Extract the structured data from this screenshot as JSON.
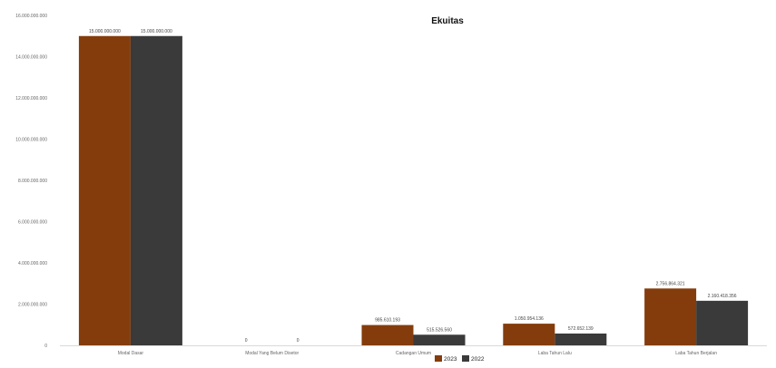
{
  "chart_data": {
    "type": "bar",
    "title": "Ekuitas",
    "xlabel": "",
    "ylabel": "",
    "categories": [
      "Modal Dasar",
      "Modal Yang Belum Disetor",
      "Cadangan Umum",
      "Laba Tahun Lalu",
      "Laba Tahun Berjalan"
    ],
    "series": [
      {
        "name": "2023",
        "color": "#843c0c",
        "values": [
          15000000000,
          0,
          985610193,
          1050954136,
          2756864321
        ],
        "labels": [
          "15.000.000.000",
          "0",
          "985.610.193",
          "1.050.954.136",
          "2.756.864.321"
        ]
      },
      {
        "name": "2022",
        "color": "#3a3a3a",
        "values": [
          15000000000,
          0,
          515526560,
          572652139,
          2160418356
        ],
        "labels": [
          "15.000.000.000",
          "0",
          "515.526.560",
          "572.652.139",
          "2.160.418.356"
        ]
      }
    ],
    "ylim": [
      0,
      16000000000
    ],
    "yticks": [
      0,
      2000000000,
      4000000000,
      6000000000,
      8000000000,
      10000000000,
      12000000000,
      14000000000,
      16000000000
    ],
    "ytick_labels": [
      "0",
      "2.000.000.000",
      "4.000.000.000",
      "6.000.000.000",
      "8.000.000.000",
      "10.000.000.000",
      "12.000.000.000",
      "14.000.000.000",
      "16.000.000.000"
    ],
    "grid": false,
    "legend": "bottom-center"
  }
}
